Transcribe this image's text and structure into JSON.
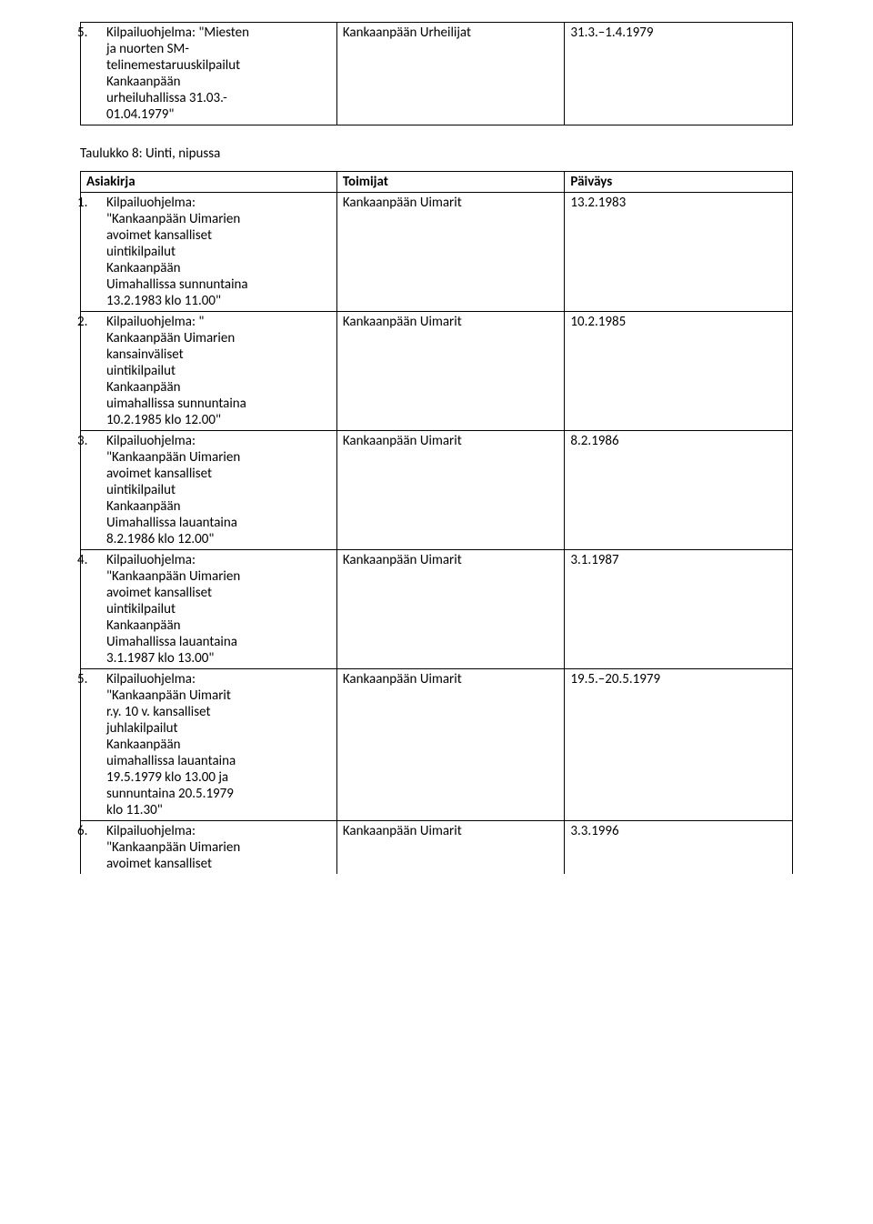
{
  "top_table": {
    "row": {
      "num": "5.",
      "desc_lines": [
        "Kilpailuohjelma: \"Miesten",
        "ja nuorten SM-",
        "telinemestaruuskilpailut",
        "Kankaanpään",
        "urheiluhallissa 31.03.-",
        "01.04.1979\""
      ],
      "col2": "Kankaanpään Urheilijat",
      "col3": "31.3.–1.4.1979"
    }
  },
  "heading": "Taulukko 8: Uinti, nipussa",
  "header": {
    "c1": "Asiakirja",
    "c2": "Toimijat",
    "c3": "Päiväys"
  },
  "rows": [
    {
      "num": "1.",
      "desc_lines": [
        "Kilpailuohjelma:",
        "\"Kankaanpään Uimarien",
        "avoimet kansalliset",
        "uintikilpailut",
        "Kankaanpään",
        "Uimahallissa sunnuntaina",
        "13.2.1983 klo 11.00\""
      ],
      "col2": "Kankaanpään Uimarit",
      "col3": "13.2.1983"
    },
    {
      "num": "2.",
      "desc_lines": [
        "Kilpailuohjelma: \"",
        "Kankaanpään Uimarien",
        "kansainväliset",
        "uintikilpailut",
        "Kankaanpään",
        "uimahallissa sunnuntaina",
        "10.2.1985 klo 12.00\""
      ],
      "col2": "Kankaanpään Uimarit",
      "col3": "10.2.1985"
    },
    {
      "num": "3.",
      "desc_lines": [
        "Kilpailuohjelma:",
        "\"Kankaanpään Uimarien",
        "avoimet kansalliset",
        "uintikilpailut",
        "Kankaanpään",
        "Uimahallissa lauantaina",
        "8.2.1986 klo 12.00\""
      ],
      "col2": "Kankaanpään Uimarit",
      "col3": "8.2.1986"
    },
    {
      "num": "4.",
      "desc_lines": [
        "Kilpailuohjelma:",
        "\"Kankaanpään Uimarien",
        "avoimet kansalliset",
        "uintikilpailut",
        "Kankaanpään",
        "Uimahallissa lauantaina",
        "3.1.1987 klo 13.00\""
      ],
      "col2": "Kankaanpään Uimarit",
      "col3": "3.1.1987"
    },
    {
      "num": "5.",
      "desc_lines": [
        "Kilpailuohjelma:",
        "\"Kankaanpään Uimarit",
        "r.y. 10 v. kansalliset",
        "juhlakilpailut",
        "Kankaanpään",
        "uimahallissa lauantaina",
        "19.5.1979 klo 13.00 ja",
        "sunnuntaina 20.5.1979",
        "klo 11.30\""
      ],
      "col2": "Kankaanpään Uimarit",
      "col3": "19.5.–20.5.1979"
    },
    {
      "num": "6.",
      "desc_lines": [
        "Kilpailuohjelma:",
        "\"Kankaanpään Uimarien",
        "avoimet kansalliset"
      ],
      "col2": "Kankaanpään Uimarit",
      "col3": "3.3.1996",
      "no_bottom": true
    }
  ]
}
